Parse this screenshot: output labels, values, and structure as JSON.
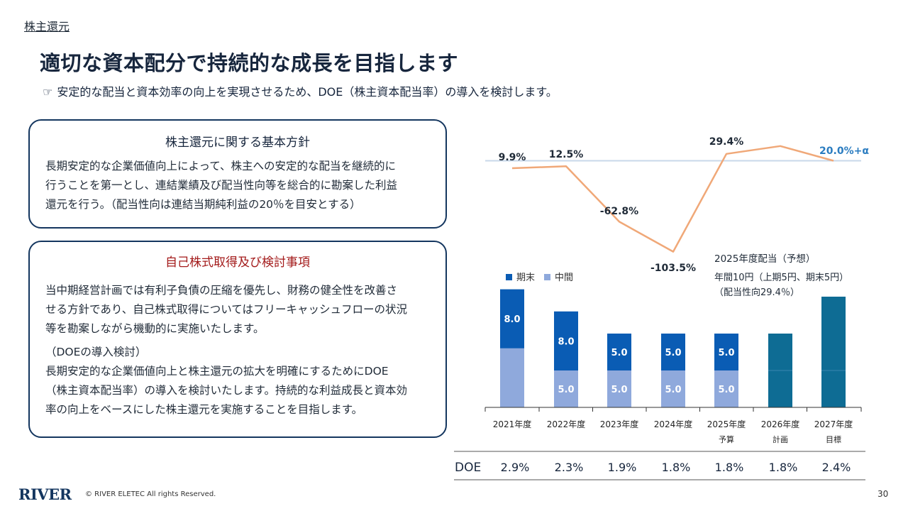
{
  "header": {
    "section_label": "株主還元",
    "title": "適切な資本配分で持続的な成長を目指します",
    "subtitle_icon": "☞",
    "subtitle": "安定的な配当と資本効率の向上を実現させるため、DOE（株主資本配当率）の導入を検討します。"
  },
  "panel_policy": {
    "title": "株主還元に関する基本方針",
    "lines": [
      "長期安定的な企業価値向上によって、株主への安定的な配当を継続的に",
      "行うことを第一とし、連結業績及び配当性向等を総合的に勘案した利益",
      "還元を行う。（配当性向は連結当期純利益の20％を目安とする）"
    ]
  },
  "panel_buyback": {
    "title": "自己株式取得及び検討事項",
    "lines": [
      "当中期経営計画では有利子負債の圧縮を優先し、財務の健全性を改善さ",
      "せる方針であり、自己株式取得についてはフリーキャッシュフローの状況",
      "等を勘案しながら機動的に実施いたします。"
    ],
    "doe_heading": "（DOEの導入検討）",
    "doe_lines": [
      "長期安定的な企業価値向上と株主還元の拡大を明確にするためにDOE",
      "（株主資本配当率）の導入を検討いたします。持続的な利益成長と資本効",
      "率の向上をベースにした株主還元を実施することを目指します。"
    ]
  },
  "chart_data": {
    "type": "bar",
    "categories": [
      "2021年度",
      "2022年度",
      "2023年度",
      "2024年度",
      "2025年度",
      "2026年度",
      "2027年度"
    ],
    "category_sublabels": [
      "",
      "",
      "",
      "",
      "予算",
      "計画",
      "目標"
    ],
    "series": [
      {
        "name": "中間",
        "values": [
          8.0,
          5.0,
          5.0,
          5.0,
          5.0,
          null,
          null
        ],
        "value_labels": [
          "",
          "5.0",
          "5.0",
          "5.0",
          "5.0",
          "",
          ""
        ],
        "color": "#8fa9dc"
      },
      {
        "name": "期末",
        "values": [
          8.0,
          8.0,
          5.0,
          5.0,
          5.0,
          null,
          null
        ],
        "value_labels": [
          "8.0",
          "8.0",
          "5.0",
          "5.0",
          "5.0",
          "",
          ""
        ],
        "color": "#0a5cb4"
      }
    ],
    "future_totals": [
      null,
      null,
      null,
      null,
      null,
      10.0,
      15.0
    ],
    "future_color": "#0e6c94",
    "payout_ratio_line": {
      "values": [
        9.9,
        12.5,
        -62.8,
        -103.5,
        29.4,
        40.0,
        20.0
      ],
      "labels": [
        "9.9%",
        "12.5%",
        "-62.8%",
        "-103.5%",
        "29.4%",
        "",
        "20.0%+α"
      ],
      "color": "#f0a878"
    },
    "reference_line": {
      "value": 20.0,
      "color": "#c8d8ea"
    },
    "doe": {
      "label": "DOE",
      "values": [
        "2.9%",
        "2.3%",
        "1.9%",
        "1.8%",
        "1.8%",
        "1.8%",
        "2.4%"
      ]
    },
    "annotation": {
      "title": "2025年度配当（予想）",
      "line1": "年間10円（上期5円、期末5円）",
      "line2": "（配当性向29.4％）"
    },
    "colors": {
      "label_future": "#2a7cc0",
      "axis": "#333333"
    }
  },
  "footer": {
    "logo": "RIVER",
    "copyright": "© RIVER ELETEC All rights Reserved.",
    "page_number": "30"
  }
}
